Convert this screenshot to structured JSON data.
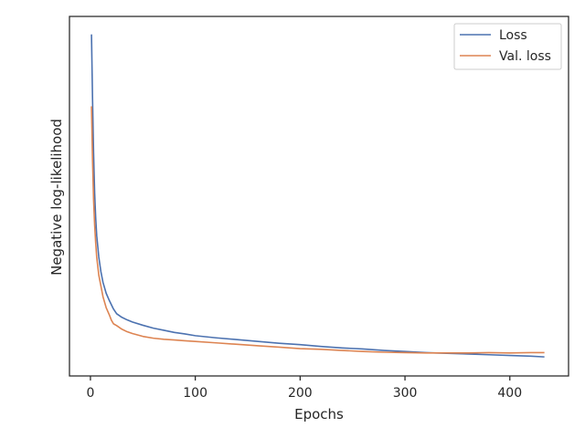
{
  "chart_data": {
    "type": "line",
    "title": "",
    "xlabel": "Epochs",
    "ylabel": "Negative log-likelihood",
    "xlim": [
      -20,
      456
    ],
    "ylim": [
      0,
      100
    ],
    "y_ticks_shown": false,
    "x_ticks": [
      0,
      100,
      200,
      300,
      400
    ],
    "grid": false,
    "legend_position": "top-right",
    "series": [
      {
        "name": "Loss",
        "color": "#4c72b0",
        "x": [
          1,
          2,
          3,
          4,
          5,
          6,
          8,
          10,
          12,
          15,
          18,
          20,
          22,
          25,
          30,
          35,
          40,
          50,
          60,
          70,
          80,
          90,
          100,
          120,
          140,
          160,
          180,
          200,
          220,
          240,
          260,
          280,
          300,
          320,
          340,
          360,
          380,
          400,
          420,
          433
        ],
        "y": [
          95,
          77,
          62,
          51,
          44,
          39,
          33,
          29,
          26,
          23,
          21,
          19.8,
          18.6,
          17.3,
          16.3,
          15.6,
          15.0,
          14.1,
          13.3,
          12.7,
          12.1,
          11.7,
          11.2,
          10.6,
          10.1,
          9.6,
          9.1,
          8.7,
          8.2,
          7.8,
          7.5,
          7.1,
          6.8,
          6.5,
          6.3,
          6.1,
          5.9,
          5.7,
          5.5,
          5.3
        ]
      },
      {
        "name": "Val. loss",
        "color": "#dd8452",
        "x": [
          1,
          2,
          3,
          4,
          5,
          6,
          8,
          10,
          12,
          15,
          18,
          20,
          22,
          25,
          30,
          35,
          40,
          50,
          60,
          70,
          80,
          90,
          100,
          120,
          140,
          160,
          180,
          200,
          220,
          240,
          260,
          280,
          300,
          320,
          340,
          360,
          380,
          400,
          420,
          433
        ],
        "y": [
          75,
          60,
          49,
          42,
          37,
          33,
          28,
          25,
          22,
          19,
          17,
          15.5,
          14.5,
          14.0,
          13.0,
          12.3,
          11.8,
          11.0,
          10.5,
          10.2,
          10.0,
          9.8,
          9.6,
          9.2,
          8.8,
          8.4,
          8.0,
          7.6,
          7.4,
          7.1,
          6.8,
          6.6,
          6.5,
          6.4,
          6.4,
          6.4,
          6.5,
          6.4,
          6.5,
          6.5
        ]
      }
    ]
  }
}
